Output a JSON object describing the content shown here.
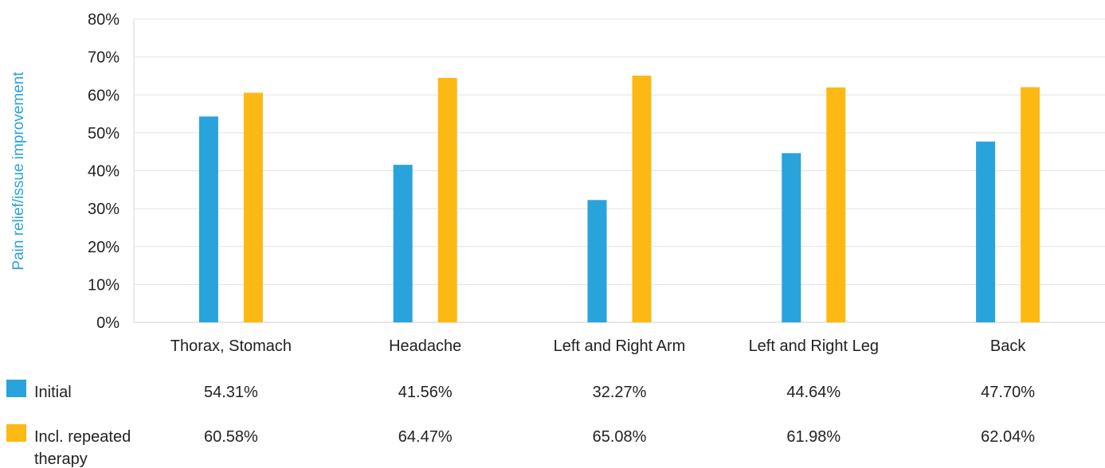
{
  "chart_data": {
    "type": "bar",
    "title": "",
    "xlabel": "",
    "ylabel": "Pain relief/issue improvement",
    "ylim": [
      0,
      80
    ],
    "yticks": [
      "0%",
      "10%",
      "20%",
      "30%",
      "40%",
      "50%",
      "60%",
      "70%",
      "80%"
    ],
    "ytick_values": [
      0,
      10,
      20,
      30,
      40,
      50,
      60,
      70,
      80
    ],
    "grid": true,
    "legend": "bottom-left data table",
    "categories": [
      "Thorax, Stomach",
      "Headache",
      "Left and Right Arm",
      "Left and Right Leg",
      "Back"
    ],
    "series": [
      {
        "name": "Initial",
        "legend_lines": [
          "Initial"
        ],
        "color": "#29a3dc",
        "values": [
          54.31,
          41.56,
          32.27,
          44.64,
          47.7
        ],
        "labels": [
          "54.31%",
          "41.56%",
          "32.27%",
          "44.64%",
          "47.70%"
        ]
      },
      {
        "name": "Incl. repeated therapy",
        "legend_lines": [
          "Incl. repeated",
          "therapy"
        ],
        "color": "#fdb913",
        "values": [
          60.58,
          64.47,
          65.08,
          61.98,
          62.04
        ],
        "labels": [
          "60.58%",
          "64.47%",
          "65.08%",
          "61.98%",
          "62.04%"
        ]
      }
    ]
  }
}
